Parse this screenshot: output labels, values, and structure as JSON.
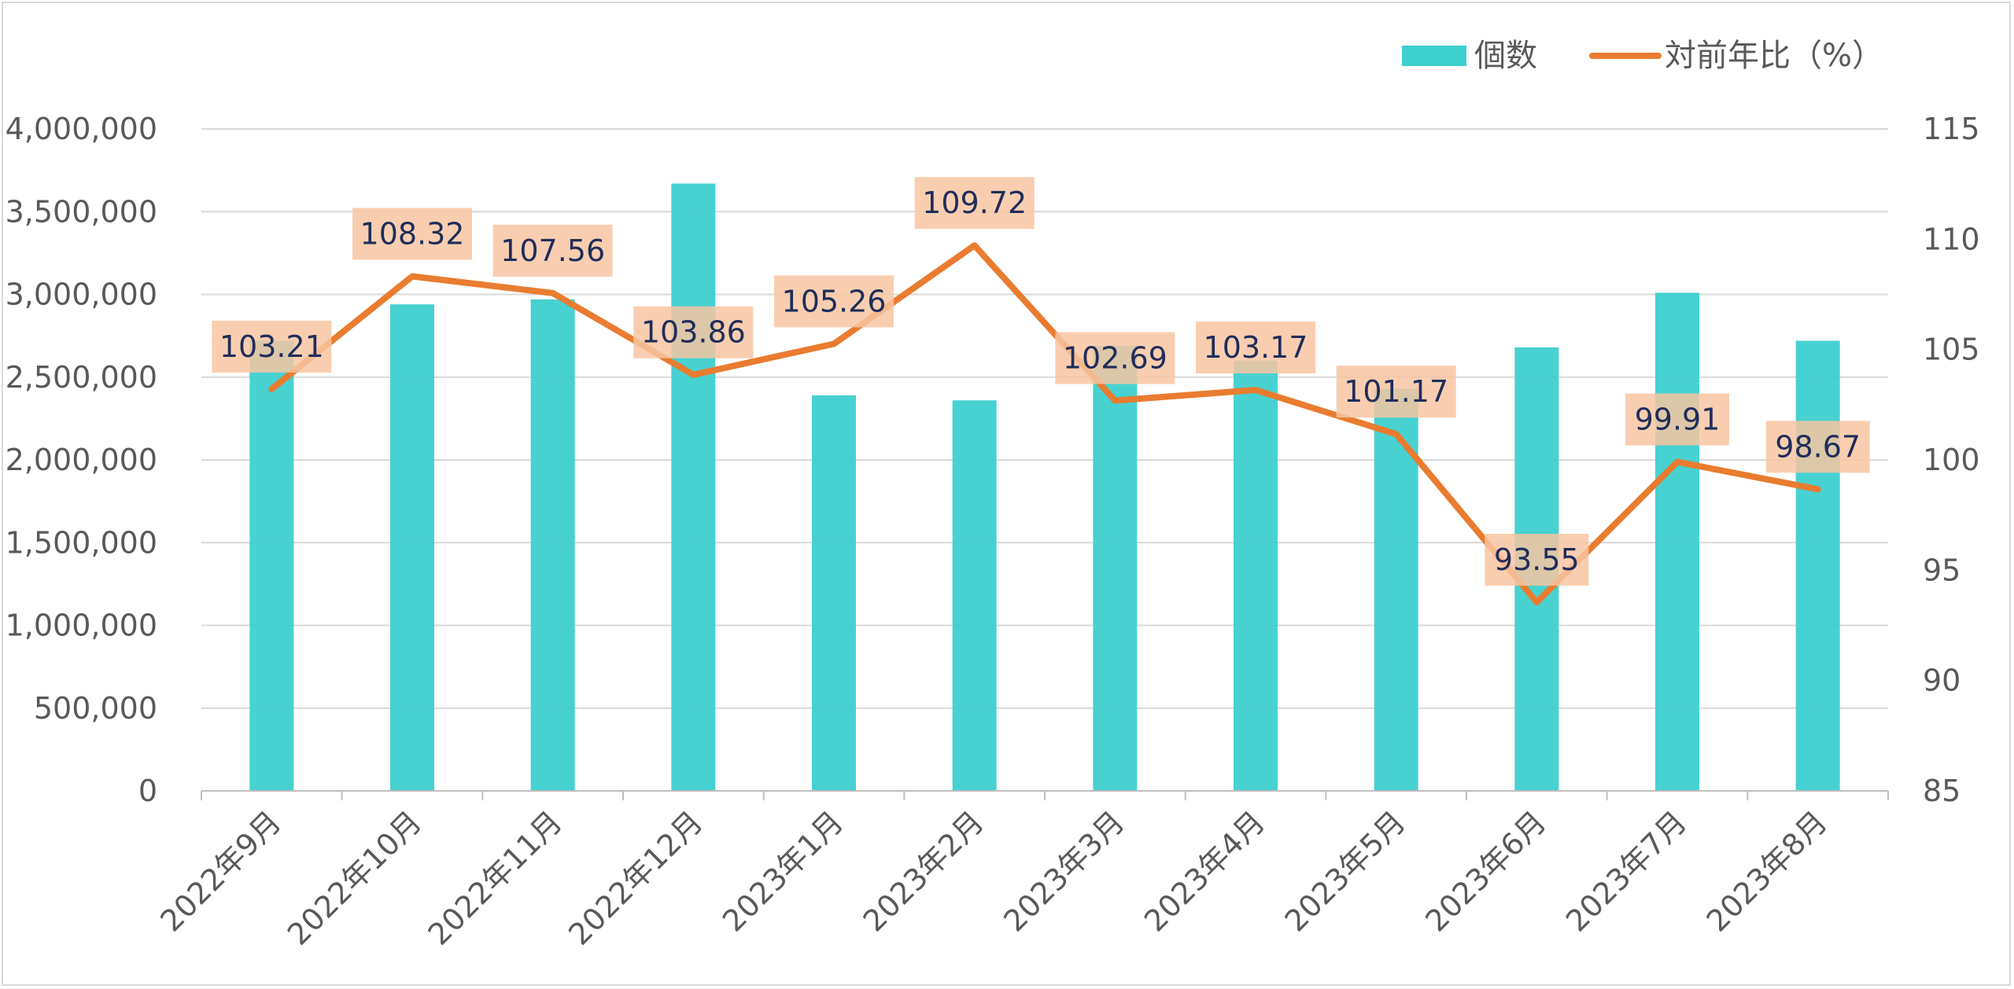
{
  "chart_data": {
    "type": "bar",
    "categories": [
      "2022年9月",
      "2022年10月",
      "2022年11月",
      "2022年12月",
      "2023年1月",
      "2023年2月",
      "2023年3月",
      "2023年4月",
      "2023年5月",
      "2023年6月",
      "2023年7月",
      "2023年8月"
    ],
    "series": [
      {
        "name": "個数",
        "type": "bar",
        "axis": "left",
        "color": "#3ecfcf",
        "values": [
          2720000,
          2940000,
          2970000,
          3670000,
          2390000,
          2360000,
          2690000,
          2600000,
          2430000,
          2680000,
          3010000,
          2720000
        ]
      },
      {
        "name": "対前年比（%）",
        "type": "line",
        "axis": "right",
        "color": "#e97c30",
        "values": [
          103.21,
          108.32,
          107.56,
          103.86,
          105.26,
          109.72,
          102.69,
          103.17,
          101.17,
          93.55,
          99.91,
          98.67
        ],
        "data_labels": [
          "103.21",
          "108.32",
          "107.56",
          "103.86",
          "105.26",
          "109.72",
          "102.69",
          "103.17",
          "101.17",
          "93.55",
          "99.91",
          "98.67"
        ]
      }
    ],
    "y_left": {
      "ylim": [
        0,
        4000000
      ],
      "ticks": [
        "0",
        "500,000",
        "1,000,000",
        "1,500,000",
        "2,000,000",
        "2,500,000",
        "3,000,000",
        "3,500,000",
        "4,000,000"
      ]
    },
    "y_right": {
      "ylim": [
        85,
        115
      ],
      "ticks": [
        "85",
        "90",
        "95",
        "100",
        "105",
        "110",
        "115"
      ]
    },
    "grid": true,
    "legend": "top-right",
    "title": "",
    "xlabel": "",
    "ylabel": "",
    "colors": {
      "bar": "#3ecfcf",
      "line": "#e97c30",
      "label_bg": "#f8c6a2",
      "label_text": "#1f2d5a",
      "grid": "#d9d9d9",
      "tick_text": "#595959"
    }
  }
}
